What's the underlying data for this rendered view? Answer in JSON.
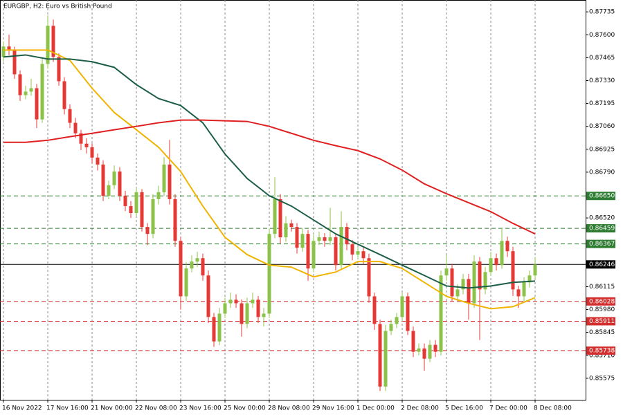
{
  "chart_data": {
    "type": "candlestick",
    "title": "EURGBP, H2:  Euro vs British Pound",
    "categories": [
      "16 Nov 2022",
      null,
      null,
      null,
      null,
      null,
      null,
      null,
      "17 Nov 16:00",
      null,
      null,
      null,
      null,
      null,
      null,
      null,
      "21 Nov 00:00",
      null,
      null,
      null,
      null,
      null,
      null,
      null,
      "22 Nov 08:00",
      null,
      null,
      null,
      null,
      null,
      null,
      null,
      "23 Nov 16:00",
      null,
      null,
      null,
      null,
      null,
      null,
      null,
      "25 Nov 00:00",
      null,
      null,
      null,
      null,
      null,
      null,
      null,
      "28 Nov 08:00",
      null,
      null,
      null,
      null,
      null,
      null,
      null,
      "29 Nov 16:00",
      null,
      null,
      null,
      null,
      null,
      null,
      null,
      "1 Dec 00:00",
      null,
      null,
      null,
      null,
      null,
      null,
      null,
      "2 Dec 08:00",
      null,
      null,
      null,
      null,
      null,
      null,
      null,
      "5 Dec 16:00",
      null,
      null,
      null,
      null,
      null,
      null,
      null,
      "7 Dec 00:00",
      null,
      null,
      null,
      null,
      null,
      null,
      null,
      "8 Dec 08:00"
    ],
    "open": [
      0.8747,
      0.87531,
      0.8751,
      0.87367,
      0.87244,
      0.87265,
      0.87285,
      0.87101,
      0.87428,
      0.87653,
      0.87469,
      0.87326,
      0.87162,
      0.87081,
      0.87019,
      0.86958,
      0.86937,
      0.86876,
      0.86835,
      0.86651,
      0.86713,
      0.86794,
      0.86651,
      0.8659,
      0.86549,
      0.86672,
      0.86467,
      0.86426,
      0.86631,
      0.86672,
      0.86835,
      0.86631,
      0.86385,
      0.86058,
      0.86222,
      0.86263,
      0.86283,
      0.86181,
      0.85936,
      0.85792,
      0.85956,
      0.86017,
      0.86038,
      0.86017,
      0.85895,
      0.86017,
      0.86038,
      0.85936,
      0.85956,
      0.86426,
      0.86631,
      0.86406,
      0.86488,
      0.86467,
      0.86344,
      0.86426,
      0.86222,
      0.86385,
      0.86406,
      0.86385,
      0.86406,
      0.86242,
      0.86467,
      0.86365,
      0.86304,
      0.86324,
      0.86283,
      0.86058,
      0.85895,
      0.85526,
      0.85854,
      0.85895,
      0.85936,
      0.86058,
      0.85854,
      0.85731,
      0.85751,
      0.8569,
      0.85772,
      0.85731,
      0.86181,
      0.86222,
      0.86058,
      0.86099,
      0.8616,
      0.86017,
      0.86263,
      0.86099,
      0.86201,
      0.86283,
      0.86242,
      0.86385,
      0.86324,
      0.86099,
      0.86058,
      0.8614,
      0.86181
    ],
    "high": [
      0.8756,
      0.876,
      0.8753,
      0.8739,
      0.873,
      0.8734,
      0.8731,
      0.8746,
      0.87715,
      0.8769,
      0.8749,
      0.8735,
      0.8719,
      0.8711,
      0.8704,
      0.8699,
      0.8696,
      0.869,
      0.8686,
      0.8674,
      0.8683,
      0.8682,
      0.8668,
      0.8662,
      0.867,
      0.8669,
      0.8649,
      0.8666,
      0.8671,
      0.8688,
      0.8698,
      0.8666,
      0.8641,
      0.8626,
      0.863,
      0.8632,
      0.8631,
      0.8621,
      0.8596,
      0.8599,
      0.8605,
      0.8608,
      0.8607,
      0.8604,
      0.8605,
      0.8608,
      0.8606,
      0.8599,
      0.8646,
      0.8676,
      0.8666,
      0.8653,
      0.8651,
      0.8649,
      0.8646,
      0.8645,
      0.8642,
      0.8644,
      0.8643,
      0.8658,
      0.8643,
      0.8656,
      0.8649,
      0.8639,
      0.8635,
      0.8635,
      0.8631,
      0.8608,
      0.8592,
      0.8589,
      0.8592,
      0.8596,
      0.8608,
      0.8608,
      0.8588,
      0.8578,
      0.8578,
      0.858,
      0.858,
      0.8621,
      0.863,
      0.8625,
      0.8613,
      0.8619,
      0.8619,
      0.863,
      0.8629,
      0.8623,
      0.8632,
      0.8631,
      0.8646,
      0.8641,
      0.8635,
      0.8612,
      0.8617,
      0.8621,
      0.8629
    ],
    "low": [
      0.8744,
      0.8748,
      0.8734,
      0.8721,
      0.8722,
      0.8724,
      0.8705,
      0.8708,
      0.874,
      0.8744,
      0.873,
      0.8713,
      0.8705,
      0.8699,
      0.8692,
      0.869,
      0.8684,
      0.868,
      0.8662,
      0.8663,
      0.8669,
      0.8662,
      0.8656,
      0.8652,
      0.8653,
      0.8644,
      0.8636,
      0.864,
      0.866,
      0.8665,
      0.866,
      0.8635,
      0.8598,
      0.8603,
      0.862,
      0.8623,
      0.8615,
      0.859,
      0.8576,
      0.8577,
      0.8593,
      0.8599,
      0.8599,
      0.8582,
      0.8587,
      0.8599,
      0.859,
      0.8588,
      0.8593,
      0.864,
      0.8637,
      0.8638,
      0.8644,
      0.8631,
      0.8632,
      0.8615,
      0.862,
      0.8636,
      0.8635,
      0.8636,
      0.8621,
      0.8622,
      0.8633,
      0.8627,
      0.8628,
      0.8625,
      0.8602,
      0.8586,
      0.855,
      0.855,
      0.8583,
      0.8587,
      0.8591,
      0.8583,
      0.857,
      0.8571,
      0.8562,
      0.8567,
      0.857,
      0.8571,
      0.8615,
      0.8603,
      0.8603,
      0.8607,
      0.8592,
      0.8599,
      0.858,
      0.8607,
      0.8618,
      0.8621,
      0.8622,
      0.8629,
      0.8606,
      0.8599,
      0.8603,
      0.8611,
      0.8616
    ],
    "close": [
      0.87531,
      0.8751,
      0.87367,
      0.87244,
      0.87265,
      0.87285,
      0.87101,
      0.87428,
      0.87653,
      0.87469,
      0.87326,
      0.87162,
      0.87081,
      0.87019,
      0.86958,
      0.86937,
      0.86876,
      0.86835,
      0.86651,
      0.86713,
      0.86794,
      0.86651,
      0.8659,
      0.86549,
      0.86672,
      0.86467,
      0.86426,
      0.86631,
      0.86672,
      0.86835,
      0.86631,
      0.86385,
      0.86058,
      0.86222,
      0.86263,
      0.86283,
      0.86181,
      0.85936,
      0.85792,
      0.85956,
      0.86017,
      0.86038,
      0.86017,
      0.85895,
      0.86017,
      0.86038,
      0.85936,
      0.85956,
      0.86426,
      0.86631,
      0.86406,
      0.86488,
      0.86467,
      0.86344,
      0.86426,
      0.86222,
      0.86385,
      0.86406,
      0.86385,
      0.86406,
      0.86242,
      0.86467,
      0.86365,
      0.86304,
      0.86324,
      0.86283,
      0.86058,
      0.85895,
      0.85526,
      0.85854,
      0.85895,
      0.85936,
      0.86058,
      0.85854,
      0.85731,
      0.85751,
      0.8569,
      0.85772,
      0.85731,
      0.86181,
      0.86222,
      0.86058,
      0.86099,
      0.8616,
      0.86017,
      0.86263,
      0.86099,
      0.86201,
      0.86283,
      0.86242,
      0.86385,
      0.86324,
      0.86099,
      0.86058,
      0.8614,
      0.86181,
      0.86246
    ],
    "up_color": "#8bc34a",
    "down_color": "#e53935",
    "ma": [
      {
        "color": "#f0b400",
        "x": [
          0,
          4,
          8,
          12,
          16,
          20,
          24,
          28,
          32,
          36,
          40,
          44,
          48,
          52,
          56,
          60,
          64,
          68,
          72,
          76,
          80,
          84,
          88,
          92,
          96
        ],
        "values": [
          0.8751,
          0.8751,
          0.8751,
          0.87449,
          0.87285,
          0.87142,
          0.8704,
          0.86937,
          0.86794,
          0.8659,
          0.86406,
          0.86304,
          0.86242,
          0.8623,
          0.86173,
          0.86201,
          0.86263,
          0.86263,
          0.86222,
          0.8614,
          0.86058,
          0.86017,
          0.85985,
          0.85997,
          0.8605
        ]
      },
      {
        "color": "#1b5e45",
        "x": [
          0,
          4,
          8,
          12,
          16,
          20,
          24,
          28,
          32,
          36,
          40,
          44,
          48,
          52,
          56,
          60,
          64,
          68,
          72,
          76,
          80,
          84,
          88,
          92,
          96
        ],
        "values": [
          0.87469,
          0.87481,
          0.87457,
          0.87457,
          0.87441,
          0.87408,
          0.87306,
          0.87224,
          0.87183,
          0.87081,
          0.86897,
          0.86753,
          0.86651,
          0.8659,
          0.86508,
          0.86426,
          0.86365,
          0.86304,
          0.86242,
          0.86181,
          0.86119,
          0.86107,
          0.86119,
          0.8614,
          0.86148
        ]
      },
      {
        "color": "#e02020",
        "x": [
          0,
          4,
          8,
          12,
          16,
          20,
          24,
          28,
          32,
          36,
          40,
          44,
          48,
          52,
          56,
          60,
          64,
          68,
          72,
          76,
          80,
          84,
          88,
          92,
          96
        ],
        "values": [
          0.86966,
          0.86966,
          0.86978,
          0.86999,
          0.87019,
          0.8704,
          0.8706,
          0.87081,
          0.87097,
          0.87097,
          0.87093,
          0.87089,
          0.8706,
          0.87019,
          0.86978,
          0.86946,
          0.86917,
          0.86868,
          0.86802,
          0.86721,
          0.86663,
          0.8661,
          0.86557,
          0.86488,
          0.86426
        ]
      }
    ],
    "levels": [
      {
        "value": 0.8665,
        "label": "0.86650",
        "color": "#2e7d32"
      },
      {
        "value": 0.86459,
        "label": "0.86459",
        "color": "#2e7d32"
      },
      {
        "value": 0.86367,
        "label": "0.86367",
        "color": "#2e7d32"
      },
      {
        "value": 0.86246,
        "label": "0.86246",
        "color": "#000000"
      },
      {
        "value": 0.86028,
        "label": "0.86028",
        "color": "#d32f2f"
      },
      {
        "value": 0.85911,
        "label": "0.85911",
        "color": "#d32f2f"
      },
      {
        "value": 0.85738,
        "label": "0.85738",
        "color": "#d32f2f"
      }
    ],
    "ylim": [
      0.85448,
      0.87805
    ],
    "yticks": [
      {
        "value": 0.87735,
        "label": "0.87735"
      },
      {
        "value": 0.876,
        "label": "0.87600"
      },
      {
        "value": 0.87465,
        "label": "0.87465"
      },
      {
        "value": 0.8733,
        "label": "0.87330"
      },
      {
        "value": 0.87195,
        "label": "0.87195"
      },
      {
        "value": 0.8706,
        "label": "0.87060"
      },
      {
        "value": 0.86925,
        "label": "0.86925"
      },
      {
        "value": 0.8679,
        "label": "0.86790"
      },
      {
        "value": 0.8652,
        "label": "0.86520"
      },
      {
        "value": 0.86115,
        "label": "0.86115"
      },
      {
        "value": 0.8598,
        "label": "0.85980"
      },
      {
        "value": 0.85845,
        "label": "0.85845"
      },
      {
        "value": 0.8571,
        "label": "0.85710"
      },
      {
        "value": 0.85575,
        "label": "0.85575"
      }
    ],
    "grid": true
  }
}
